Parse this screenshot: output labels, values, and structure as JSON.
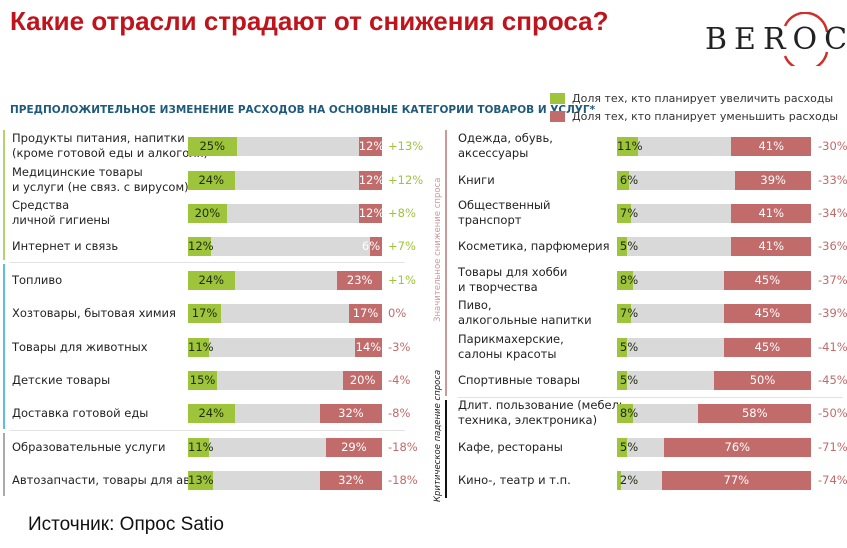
{
  "title": "Какие отрасли страдают от снижения спроса?",
  "logo": "BEROC",
  "source": "Источник: Опрос Satio",
  "colors": {
    "increase": "#9dc43a",
    "decrease": "#c26b6b",
    "track": "#d9d9d9",
    "title": "#c0141c",
    "positive_diff": "#9dc43a",
    "negative_diff": "#c26b6b"
  },
  "chart_data": {
    "type": "bar",
    "title": "ПРЕДПОЛОЖИТЕЛЬНОЕ ИЗМЕНЕНИЕ РАСХОДОВ НА ОСНОВНЫЕ КАТЕГОРИИ ТОВАРОВ И УСЛУГ*",
    "legend": [
      "Доля тех, кто планирует увеличить расходы",
      "Доля тех, кто планирует уменьшить расходы"
    ],
    "legend_position": "top-right",
    "unit": "%",
    "xlim": [
      0,
      100
    ],
    "group_labels": {
      "significant": "Значительное снижение спроса",
      "critical": "Критическое падение спроса"
    },
    "left": [
      {
        "category": "Продукты питания, напитки\n(кроме готовой еды и алкоголя)",
        "increase": 25,
        "decrease": 12,
        "diff": "+13%",
        "group": "green"
      },
      {
        "category": "Медицинские товары\nи услуги (не связ. с вирусом)",
        "increase": 24,
        "decrease": 12,
        "diff": "+12%",
        "group": "green"
      },
      {
        "category": "Средства\nличной гигиены",
        "increase": 20,
        "decrease": 12,
        "diff": "+8%",
        "group": "green"
      },
      {
        "category": "Интернет и связь",
        "increase": 12,
        "decrease": 6,
        "diff": "+7%",
        "group": "green"
      },
      {
        "category": "Топливо",
        "increase": 24,
        "decrease": 23,
        "diff": "+1%",
        "group": "blue"
      },
      {
        "category": "Хозтовары, бытовая химия",
        "increase": 17,
        "decrease": 17,
        "diff": "0%",
        "group": "blue"
      },
      {
        "category": "Товары для животных",
        "increase": 11,
        "decrease": 14,
        "diff": "-3%",
        "group": "blue"
      },
      {
        "category": "Детские товары",
        "increase": 15,
        "decrease": 20,
        "diff": "-4%",
        "group": "blue"
      },
      {
        "category": "Доставка готовой еды",
        "increase": 24,
        "decrease": 32,
        "diff": "-8%",
        "group": "blue"
      },
      {
        "category": "Образовательные услуги",
        "increase": 11,
        "decrease": 29,
        "diff": "-18%",
        "group": "gray"
      },
      {
        "category": "Автозапчасти, товары для авто",
        "increase": 13,
        "decrease": 32,
        "diff": "-18%",
        "group": "gray"
      }
    ],
    "right": [
      {
        "category": "Одежда, обувь,\nаксессуары",
        "increase": 11,
        "decrease": 41,
        "diff": "-30%",
        "group": "significant"
      },
      {
        "category": "Книги",
        "increase": 6,
        "decrease": 39,
        "diff": "-33%",
        "group": "significant"
      },
      {
        "category": "Общественный\nтранспорт",
        "increase": 7,
        "decrease": 41,
        "diff": "-34%",
        "group": "significant"
      },
      {
        "category": "Косметика, парфюмерия",
        "increase": 5,
        "decrease": 41,
        "diff": "-36%",
        "group": "significant"
      },
      {
        "category": "Товары для хобби\nи творчества",
        "increase": 8,
        "decrease": 45,
        "diff": "-37%",
        "group": "significant"
      },
      {
        "category": "Пиво,\nалкогольные напитки",
        "increase": 7,
        "decrease": 45,
        "diff": "-39%",
        "group": "significant"
      },
      {
        "category": "Парикмахерские,\nсалоны красоты",
        "increase": 5,
        "decrease": 45,
        "diff": "-41%",
        "group": "significant"
      },
      {
        "category": "Спортивные товары",
        "increase": 5,
        "decrease": 50,
        "diff": "-45%",
        "group": "significant"
      },
      {
        "category": "Длит. пользование (мебель,\nтехника, электроника)",
        "increase": 8,
        "decrease": 58,
        "diff": "-50%",
        "group": "critical"
      },
      {
        "category": "Кафе, рестораны",
        "increase": 5,
        "decrease": 76,
        "diff": "-71%",
        "group": "critical"
      },
      {
        "category": "Кино-, театр и т.п.",
        "increase": 2,
        "decrease": 77,
        "diff": "-74%",
        "group": "critical"
      }
    ]
  }
}
